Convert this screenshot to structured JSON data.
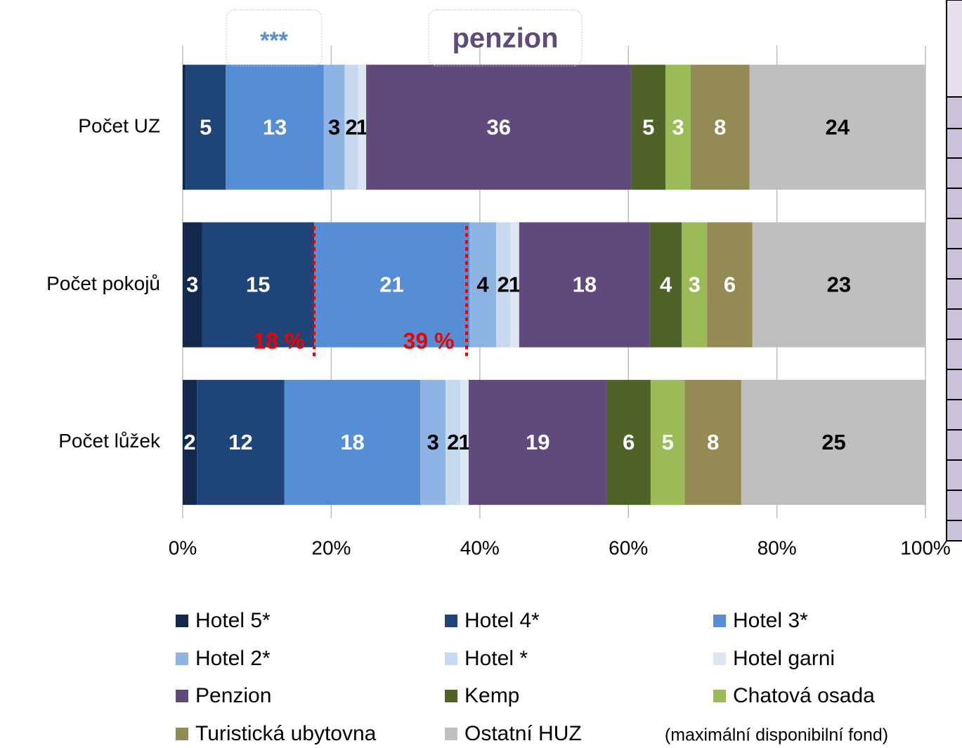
{
  "chart_data": {
    "type": "stacked-bar-horizontal",
    "categories": [
      "Počet UZ",
      "Počet pokojů",
      "Počet lůžek"
    ],
    "series": [
      {
        "name": "Hotel 5*",
        "color": "#13294b",
        "values": [
          0.4,
          2.6,
          1.9
        ],
        "value_labels": [
          null,
          "3",
          "2"
        ]
      },
      {
        "name": "Hotel 4*",
        "color": "#1f4578",
        "values": [
          5.4,
          15.1,
          11.8
        ],
        "value_labels": [
          "5",
          "15",
          "12"
        ]
      },
      {
        "name": "Hotel 3*",
        "color": "#558ed5",
        "values": [
          13.2,
          20.9,
          18.3
        ],
        "value_labels": [
          "13",
          "21",
          "18"
        ]
      },
      {
        "name": "Hotel 2*",
        "color": "#8eb4e3",
        "values": [
          2.8,
          3.6,
          3.4
        ],
        "value_labels": [
          "3",
          "4",
          "3"
        ]
      },
      {
        "name": "Hotel *",
        "color": "#c6d9f1",
        "values": [
          1.8,
          1.9,
          2.0
        ],
        "value_labels": [
          "2",
          "2",
          "2"
        ]
      },
      {
        "name": "Hotel garni",
        "color": "#dce6f2",
        "values": [
          1.1,
          1.2,
          1.1
        ],
        "value_labels": [
          "1",
          "1",
          "1"
        ]
      },
      {
        "name": "Penzion",
        "color": "#604a7b",
        "values": [
          35.7,
          17.6,
          18.6
        ],
        "value_labels": [
          "36",
          "18",
          "19"
        ]
      },
      {
        "name": "Kemp",
        "color": "#4f6228",
        "values": [
          4.6,
          4.3,
          5.9
        ],
        "value_labels": [
          "5",
          "4",
          "6"
        ]
      },
      {
        "name": "Chatová osada",
        "color": "#9bbb59",
        "values": [
          3.4,
          3.4,
          4.6
        ],
        "value_labels": [
          "3",
          "3",
          "5"
        ]
      },
      {
        "name": "Turistická ubytovna",
        "color": "#948a54",
        "values": [
          7.9,
          6.1,
          7.6
        ],
        "value_labels": [
          "8",
          "6",
          "8"
        ]
      },
      {
        "name": "Ostatní HUZ",
        "color": "#bfbfbf",
        "values": [
          23.7,
          23.3,
          24.9
        ],
        "value_labels": [
          "24",
          "23",
          "25"
        ]
      }
    ],
    "xlim": [
      0,
      100
    ],
    "xticks": [
      {
        "value": 0,
        "label": "0%"
      },
      {
        "value": 20,
        "label": "20%"
      },
      {
        "value": 40,
        "label": "40%"
      },
      {
        "value": 60,
        "label": "60%"
      },
      {
        "value": 80,
        "label": "80%"
      },
      {
        "value": 100,
        "label": "100%"
      }
    ],
    "grid": true,
    "annotations": [
      "***",
      "penzion",
      "18 %",
      "39 %",
      "(maximální disponibilní fond)"
    ]
  }
}
